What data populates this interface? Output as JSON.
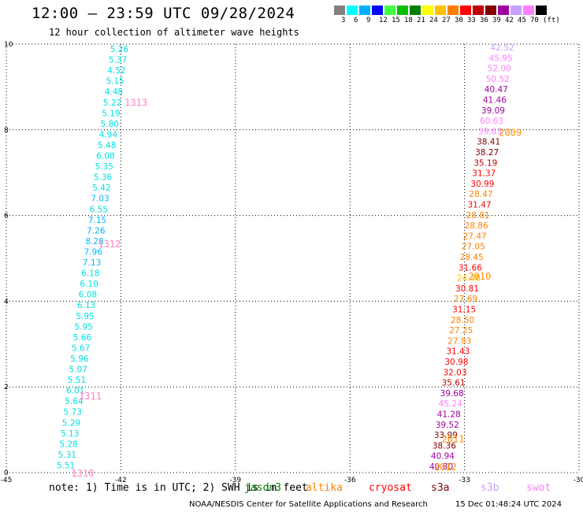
{
  "title": "12:00 – 23:59 UTC 09/28/2024",
  "subtitle": "12 hour collection of altimeter wave heights",
  "color_scale": {
    "colors": [
      "#808080",
      "#00ffff",
      "#00b0ff",
      "#0000ff",
      "#40ff40",
      "#00c000",
      "#008000",
      "#ffff00",
      "#ffc000",
      "#ff8000",
      "#ff0000",
      "#c00000",
      "#800000",
      "#a000a0",
      "#c8a0ff",
      "#ff80ff",
      "#000000"
    ],
    "ticks": [
      "3",
      "6",
      "9",
      "12",
      "15",
      "18",
      "21",
      "24",
      "27",
      "30",
      "33",
      "36",
      "39",
      "42",
      "45",
      "70",
      "(ft)"
    ]
  },
  "axes": {
    "x_ticks": [
      "-45",
      "-42",
      "-39",
      "-36",
      "-33",
      "-30"
    ],
    "y_ticks": [
      "0",
      "2",
      "4",
      "6",
      "8",
      "10"
    ]
  },
  "track_labels": [
    {
      "text": "1313",
      "lon": -41.9,
      "lat": 8.65,
      "color": "#ff80c0"
    },
    {
      "text": "1312",
      "lon": -42.6,
      "lat": 5.35,
      "color": "#ff80c0"
    },
    {
      "text": "1311",
      "lon": -43.1,
      "lat": 1.8,
      "color": "#ff80c0"
    },
    {
      "text": "1310",
      "lon": -43.3,
      "lat": 0.0,
      "color": "#ff80c0"
    },
    {
      "text": "2009",
      "lon": -32.1,
      "lat": 7.95,
      "color": "#ff9000"
    },
    {
      "text": "2010",
      "lon": -32.9,
      "lat": 4.6,
      "color": "#ff9000"
    },
    {
      "text": "2011",
      "lon": -33.6,
      "lat": 0.8,
      "color": "#ff9000"
    },
    {
      "text": "2012",
      "lon": -33.8,
      "lat": 0.15,
      "color": "#ff9000"
    }
  ],
  "left_track": {
    "values": [
      "5.26",
      "5.37",
      "4.52",
      "5.15",
      "4.48",
      "5.22",
      "5.19",
      "5.80",
      "4.94",
      "5.48",
      "6.08",
      "5.35",
      "5.36",
      "5.42",
      "7.03",
      "6.55",
      "7.15",
      "7.26",
      "8.28",
      "7.96",
      "7.13",
      "6.18",
      "6.10",
      "6.08",
      "6.13",
      "5.95",
      "5.95",
      "5.66",
      "5.67",
      "5.96",
      "5.07",
      "5.51",
      "6.01",
      "5.64",
      "5.73",
      "5.29",
      "5.13",
      "5.28",
      "5.31",
      "5.51"
    ],
    "colors": [
      "#00e0e0",
      "#00e0e0",
      "#00e0e0",
      "#00e0e0",
      "#00e0e0",
      "#00e0e0",
      "#00e0e0",
      "#00e0e0",
      "#00e0e0",
      "#00e0e0",
      "#00e0e0",
      "#00e0e0",
      "#00e0e0",
      "#00e0e0",
      "#00b8ff",
      "#00e0e0",
      "#00b8ff",
      "#00b8ff",
      "#00b8ff",
      "#00b8ff",
      "#00b8ff",
      "#00e0e0",
      "#00e0e0",
      "#00e0e0",
      "#00e0e0",
      "#00e0e0",
      "#00e0e0",
      "#00e0e0",
      "#00e0e0",
      "#00e0e0",
      "#00e0e0",
      "#00e0e0",
      "#00e0e0",
      "#00e0e0",
      "#00e0e0",
      "#00e0e0",
      "#00e0e0",
      "#00e0e0",
      "#00e0e0",
      "#00e0e0"
    ]
  },
  "right_track": {
    "values": [
      "42.52",
      "45.95",
      "52.00",
      "50.52",
      "40.47",
      "41.46",
      "39.09",
      "60.63",
      "39.63",
      "38.41",
      "38.27",
      "35.19",
      "31.37",
      "30.99",
      "28.47",
      "31.47",
      "28.81",
      "28.86",
      "27.47",
      "27.05",
      "28.45",
      "31.66",
      "24.38",
      "30.81",
      "27.69",
      "31.15",
      "28.50",
      "27.25",
      "27.83",
      "31.43",
      "30.98",
      "32.03",
      "35.61",
      "39.68",
      "45.24",
      "41.28",
      "39.52",
      "33.99",
      "38.36",
      "40.94",
      "40.80"
    ],
    "colors": [
      "#c8a0ff",
      "#ff80ff",
      "#ff80ff",
      "#ff80ff",
      "#a000a0",
      "#a000a0",
      "#a000a0",
      "#ff80ff",
      "#ff80ff",
      "#800000",
      "#800000",
      "#c00000",
      "#ff0000",
      "#ff0000",
      "#ff8000",
      "#ff0000",
      "#ff8000",
      "#ff8000",
      "#ff8000",
      "#ff8000",
      "#ff8000",
      "#ff0000",
      "#ffc000",
      "#ff0000",
      "#ff8000",
      "#ff0000",
      "#ff8000",
      "#ff8000",
      "#ff8000",
      "#ff0000",
      "#ff0000",
      "#ff0000",
      "#c00000",
      "#a000a0",
      "#ff80ff",
      "#a000a0",
      "#a000a0",
      "#800000",
      "#800000",
      "#a000a0",
      "#a000a0"
    ]
  },
  "footer": {
    "note": "note: 1) Time is in UTC; 2) SWH is in feet",
    "satellites": [
      {
        "name": "jason3",
        "color": "#008000"
      },
      {
        "name": "altika",
        "color": "#ff8000"
      },
      {
        "name": "cryosat",
        "color": "#ff0000"
      },
      {
        "name": "s3a",
        "color": "#800000"
      },
      {
        "name": "s3b",
        "color": "#c8a0ff"
      },
      {
        "name": "swot",
        "color": "#ff80ff"
      }
    ],
    "credit": "NOAA/NESDIS Center for Satellite Applications and Research",
    "timestamp": "15 Dec 01:48:24 UTC 2024"
  }
}
